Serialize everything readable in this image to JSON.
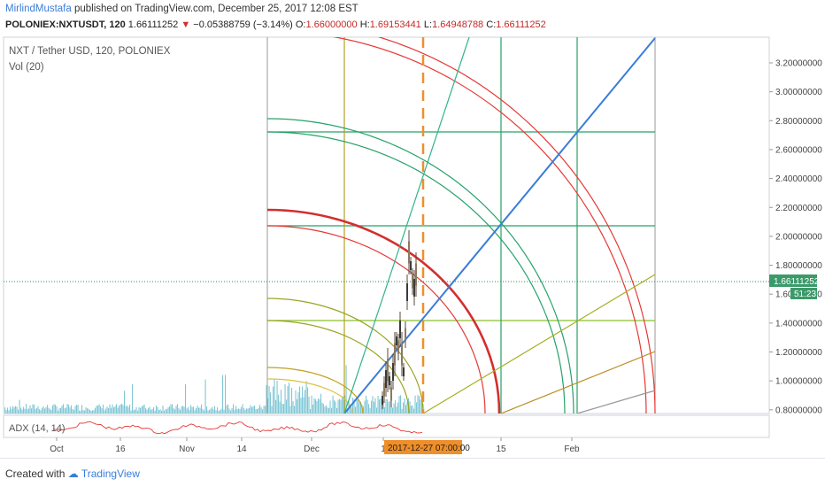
{
  "header": {
    "author": "MirlindMustafa",
    "published_text": "published on TradingView.com, December 25, 2017 12:08 EST",
    "symbol": "POLONIEX:NXTUSDT, 120",
    "last": "1.66111252",
    "change_arrow": "▼",
    "change": "−0.05388759 (−3.14%)",
    "open_label": "O:",
    "open": "1.66000000",
    "high_label": "H:",
    "high": "1.69153441",
    "low_label": "L:",
    "low": "1.64948788",
    "close_label": "C:",
    "close": "1.66111252"
  },
  "legend": {
    "title": "NXT / Tether USD, 120, POLONIEX",
    "volume": "Vol (20)",
    "adx": "ADX (14, 14)"
  },
  "price_axis": {
    "ticks": [
      "3.20000000",
      "3.00000000",
      "2.80000000",
      "2.60000000",
      "2.40000000",
      "2.20000000",
      "2.00000000",
      "1.80000000",
      "1.60000000",
      "1.40000000",
      "1.20000000",
      "1.00000000",
      "0.80000000"
    ],
    "current_price": "1.66111252",
    "countdown": "51:23"
  },
  "time_axis": {
    "ticks": [
      "Oct",
      "16",
      "Nov",
      "14",
      "Dec",
      "1",
      "15",
      "Feb"
    ],
    "cursor_label": "2017-12-27 07:00:00"
  },
  "footer": {
    "created_with": "Created with",
    "brand": "TradingView"
  },
  "colors": {
    "red": "#e53935",
    "green": "#26a269",
    "blue": "#3a7dd8",
    "olive": "#9aa521",
    "orange": "#ef8f2a",
    "volume": "#7fc7d6"
  }
}
